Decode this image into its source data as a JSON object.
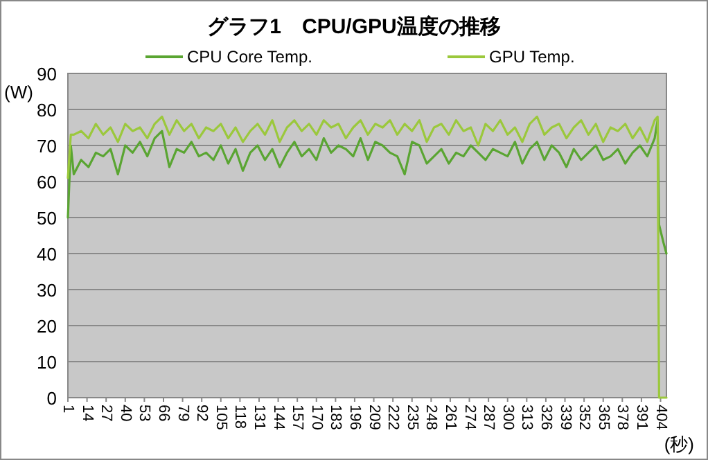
{
  "chart_data": {
    "type": "line",
    "title": "グラフ1　CPU/GPU温度の推移",
    "xlabel": "(秒)",
    "ylabel": "(W)",
    "x": [
      1,
      3,
      5,
      10,
      15,
      20,
      25,
      30,
      35,
      40,
      45,
      50,
      55,
      60,
      65,
      70,
      75,
      80,
      85,
      90,
      95,
      100,
      105,
      110,
      115,
      120,
      125,
      130,
      135,
      140,
      145,
      150,
      155,
      160,
      165,
      170,
      175,
      180,
      185,
      190,
      195,
      200,
      205,
      210,
      215,
      220,
      225,
      230,
      235,
      240,
      245,
      250,
      255,
      260,
      265,
      270,
      275,
      280,
      285,
      290,
      295,
      300,
      305,
      310,
      315,
      320,
      325,
      330,
      335,
      340,
      345,
      350,
      355,
      360,
      365,
      370,
      375,
      380,
      385,
      390,
      395,
      400,
      402,
      403,
      406,
      408
    ],
    "series": [
      {
        "name": "CPU Core Temp.",
        "color": "#5aa532",
        "values": [
          50,
          70,
          62,
          66,
          64,
          68,
          67,
          69,
          62,
          70,
          68,
          71,
          67,
          72,
          74,
          64,
          69,
          68,
          71,
          67,
          68,
          66,
          70,
          65,
          69,
          63,
          68,
          70,
          66,
          69,
          64,
          68,
          71,
          67,
          69,
          66,
          72,
          68,
          70,
          69,
          67,
          72,
          66,
          71,
          70,
          68,
          67,
          62,
          71,
          70,
          65,
          67,
          69,
          65,
          68,
          67,
          70,
          68,
          66,
          69,
          68,
          67,
          71,
          65,
          69,
          71,
          66,
          70,
          68,
          64,
          69,
          66,
          68,
          70,
          66,
          67,
          69,
          65,
          68,
          70,
          67,
          72,
          77,
          48,
          43,
          40
        ]
      },
      {
        "name": "GPU Temp.",
        "color": "#9bc83c",
        "values": [
          61,
          73,
          73,
          74,
          72,
          76,
          73,
          75,
          71,
          76,
          74,
          75,
          72,
          76,
          78,
          73,
          77,
          74,
          76,
          72,
          75,
          74,
          76,
          72,
          75,
          71,
          74,
          76,
          73,
          77,
          71,
          75,
          77,
          74,
          76,
          73,
          77,
          75,
          76,
          72,
          75,
          77,
          73,
          76,
          75,
          77,
          73,
          76,
          74,
          77,
          71,
          75,
          76,
          73,
          77,
          74,
          75,
          70,
          76,
          74,
          77,
          73,
          75,
          71,
          76,
          78,
          73,
          75,
          76,
          72,
          75,
          77,
          73,
          76,
          71,
          75,
          74,
          76,
          72,
          75,
          71,
          77,
          78,
          0,
          0,
          0
        ]
      }
    ],
    "xlim": [
      1,
      408
    ],
    "xticks": [
      1,
      14,
      27,
      40,
      53,
      66,
      79,
      92,
      105,
      118,
      131,
      144,
      157,
      170,
      183,
      196,
      209,
      222,
      235,
      248,
      261,
      274,
      287,
      300,
      313,
      326,
      339,
      352,
      365,
      378,
      391,
      404
    ],
    "ylim": [
      0,
      90
    ],
    "yticks": [
      0,
      10,
      20,
      30,
      40,
      50,
      60,
      70,
      80,
      90
    ],
    "grid": "y",
    "legend": "top"
  }
}
